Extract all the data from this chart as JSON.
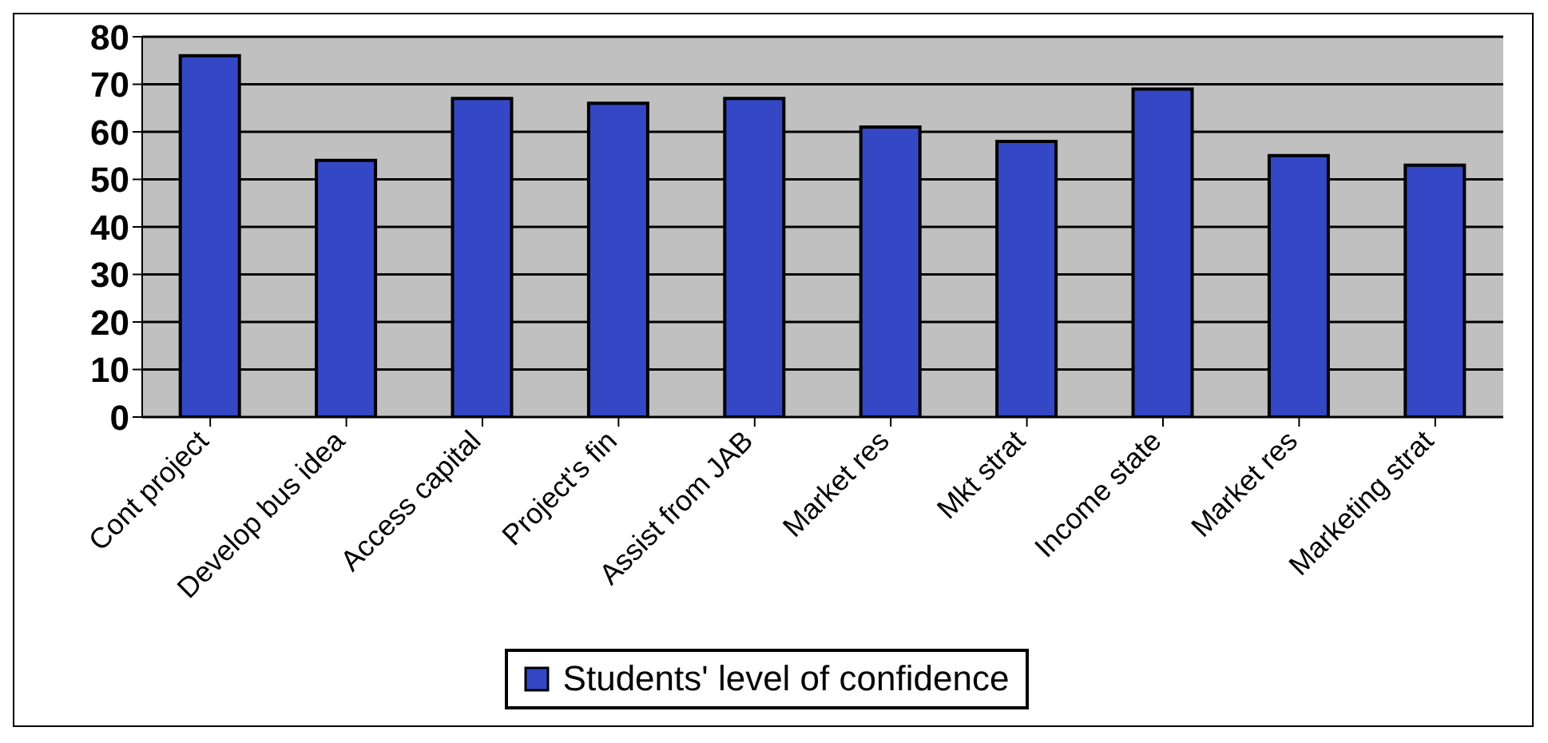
{
  "chart_data": {
    "type": "bar",
    "categories": [
      "Cont project",
      "Develop bus idea",
      "Access capital",
      "Project's fin",
      "Assist from JAB",
      "Market res",
      "Mkt strat",
      "Income state",
      "Market res",
      "Marketing strat"
    ],
    "series": [
      {
        "name": "Students' level of confidence",
        "color": "#3447c4",
        "values": [
          76,
          54,
          67,
          66,
          67,
          61,
          58,
          69,
          55,
          53
        ]
      }
    ],
    "ylim": [
      0,
      80
    ],
    "yticks": [
      0,
      10,
      20,
      30,
      40,
      50,
      60,
      70,
      80
    ],
    "grid": "y",
    "legend": "bottom"
  }
}
